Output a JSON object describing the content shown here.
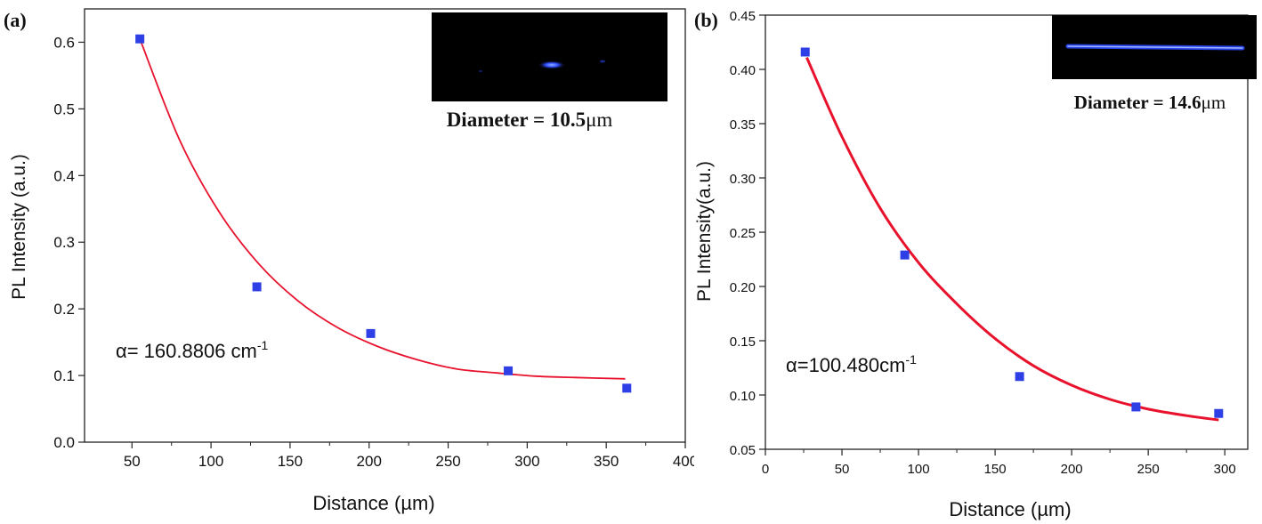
{
  "colors": {
    "fit": "#e8122d",
    "marker": "#2f3fe6",
    "axis": "#222222",
    "inset_bg": "#000000"
  },
  "chart_data": [
    {
      "type": "scatter",
      "panel_label": "(a)",
      "title": "",
      "xlabel": "Distance (µm)",
      "ylabel": "PL Intensity (a.u.)",
      "xlim": [
        20,
        400
      ],
      "ylim": [
        0.0,
        0.65
      ],
      "xticks": [
        50,
        100,
        150,
        200,
        250,
        300,
        350,
        400
      ],
      "yticks": [
        0.0,
        0.1,
        0.2,
        0.3,
        0.4,
        0.5,
        0.6
      ],
      "ytick_decimals": 1,
      "grid": false,
      "series": [
        {
          "kind": "points",
          "x": [
            55,
            129,
            201,
            288,
            363
          ],
          "y": [
            0.605,
            0.233,
            0.163,
            0.107,
            0.081
          ]
        },
        {
          "kind": "fit",
          "x": [
            55,
            80,
            105,
            130,
            155,
            180,
            205,
            230,
            255,
            280,
            305,
            330,
            362
          ],
          "y": [
            0.605,
            0.454,
            0.346,
            0.268,
            0.212,
            0.172,
            0.144,
            0.124,
            0.11,
            0.104,
            0.099,
            0.097,
            0.095
          ]
        }
      ],
      "annotation": {
        "text": "α= 160.8806 cm",
        "sup": "-1"
      },
      "inset": {
        "caption": "Diameter = 10.5",
        "unit": "μm"
      }
    },
    {
      "type": "scatter",
      "panel_label": "(b)",
      "title": "",
      "xlabel": "Distance (µm)",
      "ylabel": "PL Intensity(a.u.)",
      "xlim": [
        0,
        315
      ],
      "ylim": [
        0.05,
        0.45
      ],
      "xticks": [
        0,
        50,
        100,
        150,
        200,
        250,
        300
      ],
      "yticks": [
        0.05,
        0.1,
        0.15,
        0.2,
        0.25,
        0.3,
        0.35,
        0.4,
        0.45
      ],
      "ytick_decimals": 2,
      "grid": false,
      "series": [
        {
          "kind": "points",
          "x": [
            26,
            91,
            166,
            242,
            296
          ],
          "y": [
            0.416,
            0.229,
            0.117,
            0.089,
            0.083
          ]
        },
        {
          "kind": "fit",
          "x": [
            27,
            50,
            75,
            100,
            125,
            150,
            175,
            200,
            225,
            250,
            275,
            296
          ],
          "y": [
            0.411,
            0.338,
            0.272,
            0.222,
            0.184,
            0.152,
            0.127,
            0.109,
            0.096,
            0.087,
            0.081,
            0.077
          ]
        }
      ],
      "annotation": {
        "text": "α=100.480cm",
        "sup": "-1"
      },
      "inset": {
        "caption": "Diameter = 14.6",
        "unit": "μm"
      }
    }
  ]
}
